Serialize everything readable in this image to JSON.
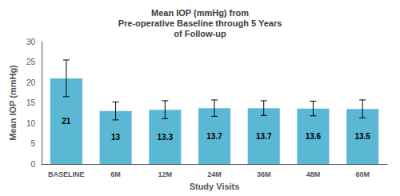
{
  "chart_data": {
    "type": "bar",
    "title": "Mean IOP (mmHg) from\nPre-operative Baseline through 5 Years\nof Follow-up",
    "categories": [
      "BASELINE",
      "6M",
      "12M",
      "24M",
      "36M",
      "48M",
      "60M"
    ],
    "values": [
      21,
      13,
      13.3,
      13.7,
      13.7,
      13.6,
      13.5
    ],
    "errors": [
      4.5,
      2.2,
      2.2,
      2.0,
      1.8,
      1.8,
      2.2
    ],
    "color": "#5bb8d4",
    "xlabel": "Study Visits",
    "ylabel": "Mean IOP (mmHg)",
    "ylim": [
      0,
      30
    ],
    "yticks": [
      0,
      5,
      10,
      15,
      20,
      25,
      30
    ],
    "grid": false,
    "data_labels": true
  }
}
